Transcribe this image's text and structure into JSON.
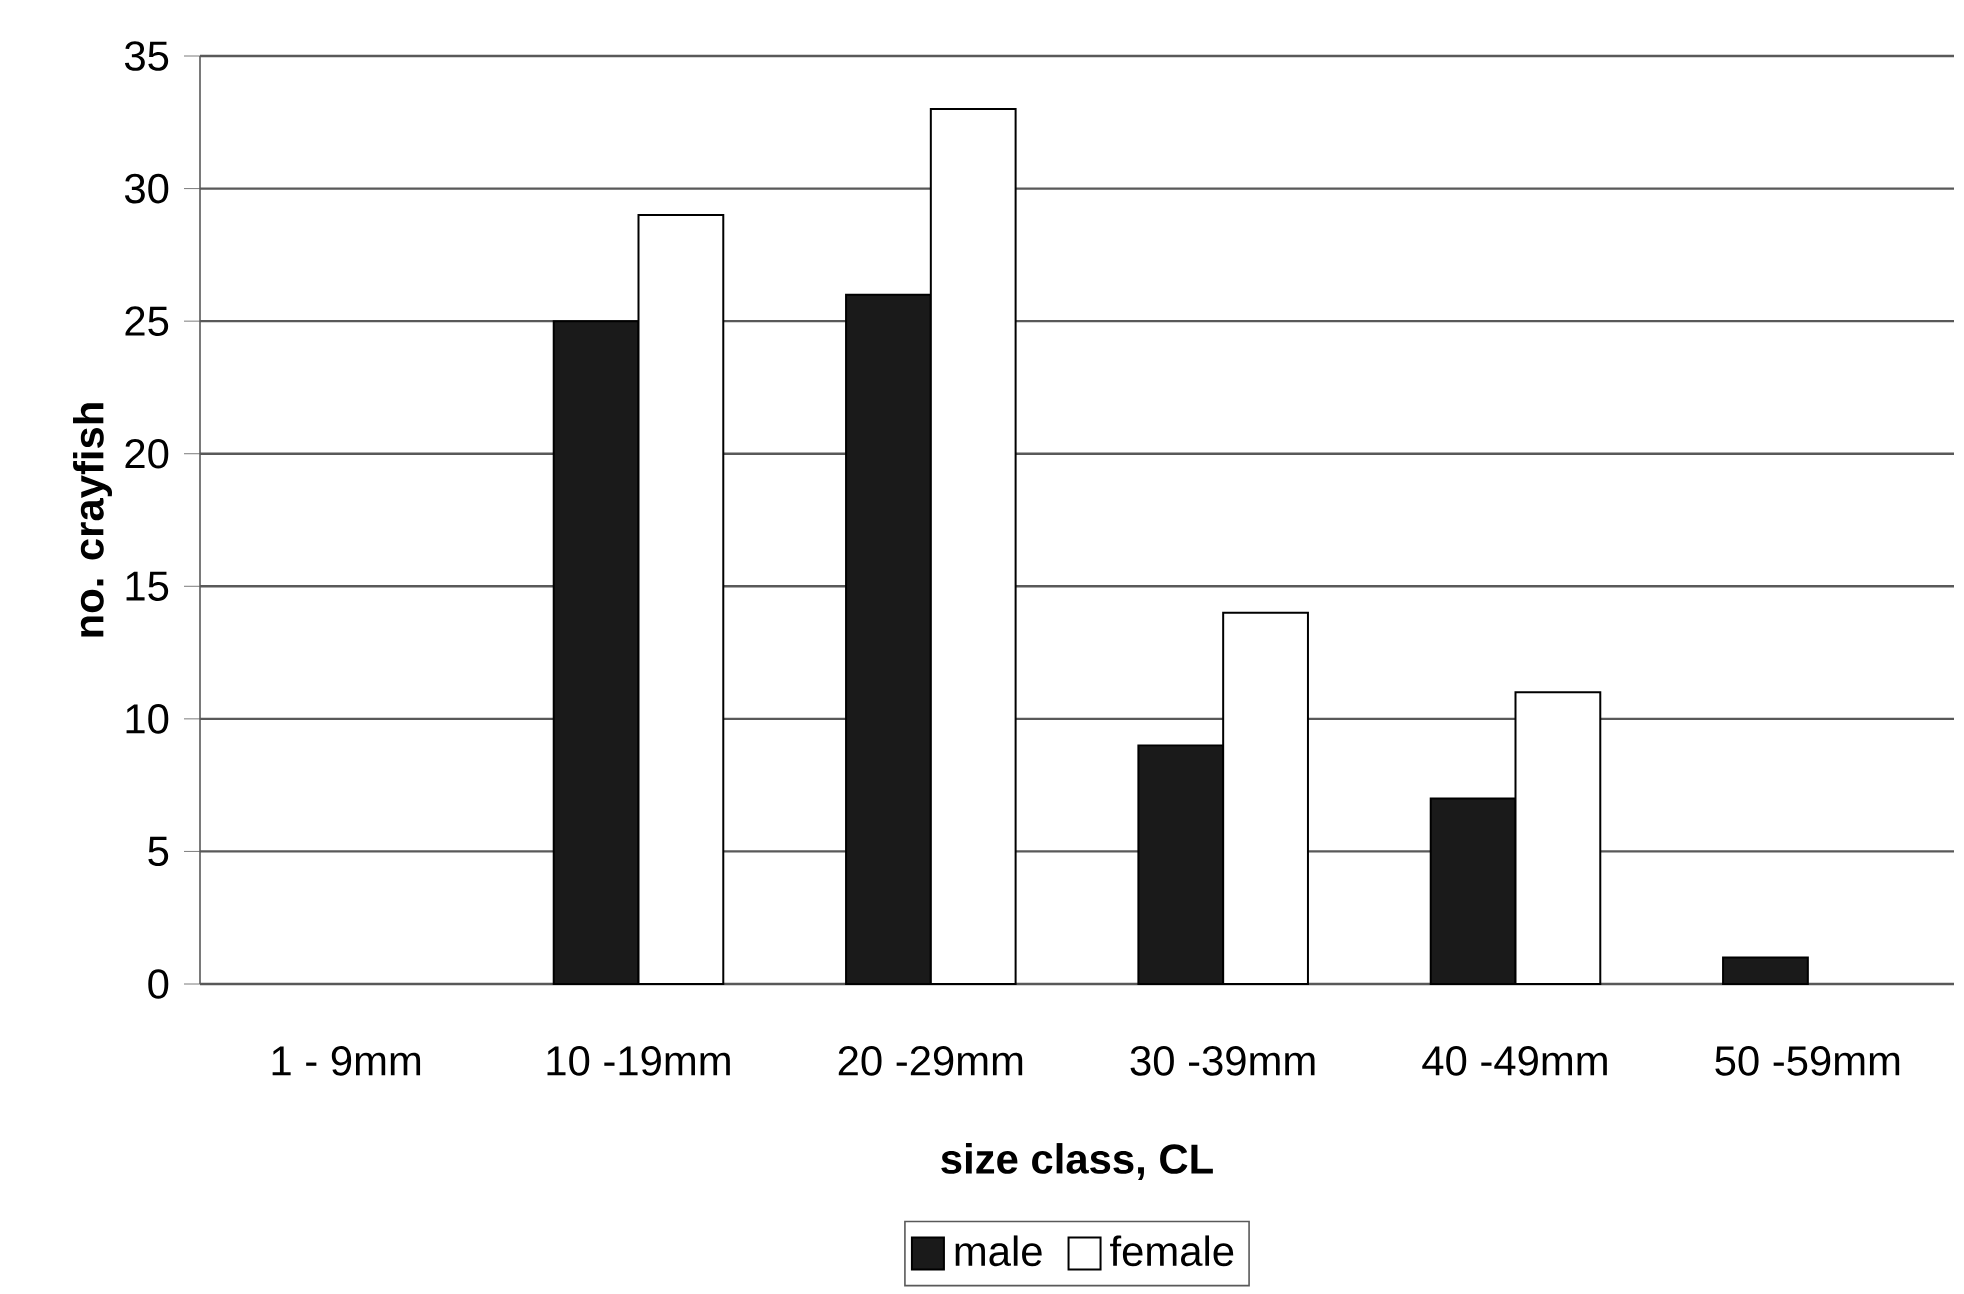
{
  "chart_data": {
    "type": "bar",
    "xlabel": "size class, CL",
    "ylabel": "no. crayfish",
    "categories": [
      "1 - 9mm",
      "10 -19mm",
      "20 -29mm",
      "30 -39mm",
      "40 -49mm",
      "50 -59mm"
    ],
    "series": [
      {
        "name": "male",
        "color": "#1a1a1a",
        "values": [
          null,
          25,
          26,
          9,
          7,
          1
        ]
      },
      {
        "name": "female",
        "color": "#ffffff",
        "values": [
          null,
          29,
          33,
          14,
          11,
          null
        ]
      }
    ],
    "ylim": [
      0,
      35
    ],
    "yticks": [
      0,
      5,
      10,
      15,
      20,
      25,
      30,
      35
    ],
    "grid": "y",
    "legend": "bottom"
  }
}
